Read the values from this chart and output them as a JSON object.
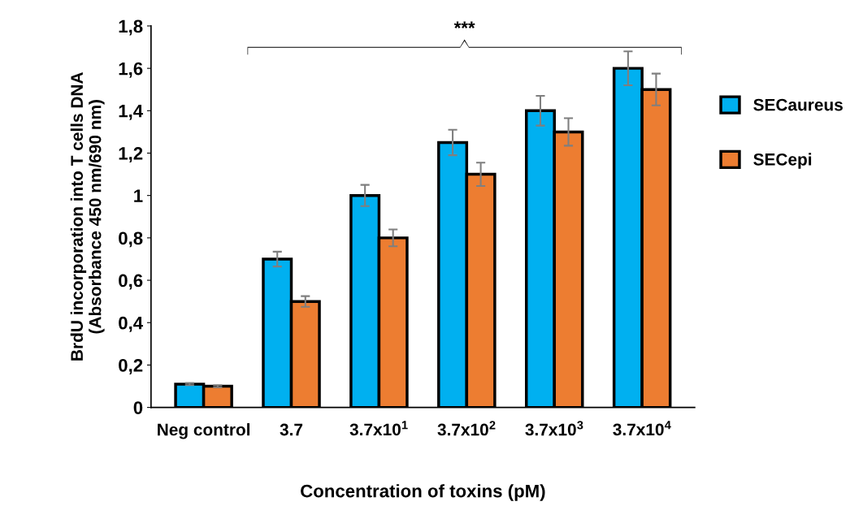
{
  "chart_data": {
    "type": "bar",
    "xlabel": "Concentration of toxins (pM)",
    "ylabel": "BrdU incorporation into T cells DNA\n(Absorbance 450 nm/690 nm)",
    "categories": [
      "Neg control",
      "3.7",
      "3.7x10$^{1}$",
      "3.7x10$^{2}$",
      "3.7x10$^{3}$",
      "3.7x10$^{4}$"
    ],
    "series": [
      {
        "name": "SECaureus",
        "color": "#00b0f0",
        "values": [
          0.11,
          0.7,
          1.0,
          1.25,
          1.4,
          1.6
        ],
        "errors": [
          0.005,
          0.035,
          0.05,
          0.06,
          0.07,
          0.08
        ]
      },
      {
        "name": "SECepi",
        "color": "#ed7d31",
        "values": [
          0.1,
          0.5,
          0.8,
          1.1,
          1.3,
          1.5
        ],
        "errors": [
          0.005,
          0.025,
          0.04,
          0.055,
          0.065,
          0.075
        ]
      }
    ],
    "ylim": [
      0,
      1.8
    ],
    "yticks": [
      0,
      {
        "value": 0.2,
        "label": "0,2"
      },
      {
        "value": 0.4,
        "label": "0,4"
      },
      {
        "value": 0.6,
        "label": "0,6"
      },
      {
        "value": 0.8,
        "label": "0,8"
      },
      1,
      {
        "value": 1.2,
        "label": "1,2"
      },
      {
        "value": 1.4,
        "label": "1,4"
      },
      {
        "value": 1.6,
        "label": "1,6"
      },
      {
        "value": 1.8,
        "label": "1,8"
      }
    ],
    "annotations": [
      "***"
    ],
    "grid": false,
    "legend": "right"
  }
}
